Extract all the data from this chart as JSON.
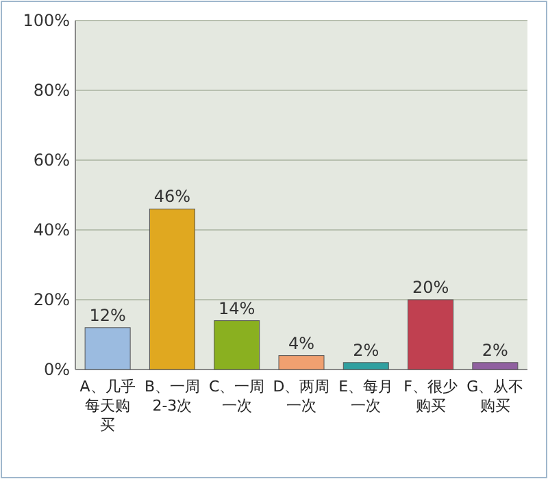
{
  "chart_data": {
    "type": "bar",
    "categories": [
      "A、几乎每天购买",
      "B、一周2-3次",
      "C、一周一次",
      "D、两周一次",
      "E、每月一次",
      "F、很少购买",
      "G、从不购买"
    ],
    "values": [
      12,
      46,
      14,
      4,
      2,
      20,
      2
    ],
    "colors": [
      "#9bbbe0",
      "#e0a820",
      "#8ab020",
      "#f0a070",
      "#30a0a0",
      "#c04050",
      "#9060a0"
    ],
    "value_labels": [
      "12%",
      "46%",
      "14%",
      "4%",
      "2%",
      "20%",
      "2%"
    ],
    "ylim": [
      0,
      100
    ],
    "yticks": [
      {
        "value": 0,
        "label": "0%"
      },
      {
        "value": 20,
        "label": "20%"
      },
      {
        "value": 40,
        "label": "40%"
      },
      {
        "value": 60,
        "label": "60%"
      },
      {
        "value": 80,
        "label": "80%"
      },
      {
        "value": 100,
        "label": "100%"
      }
    ],
    "grid": "y"
  }
}
